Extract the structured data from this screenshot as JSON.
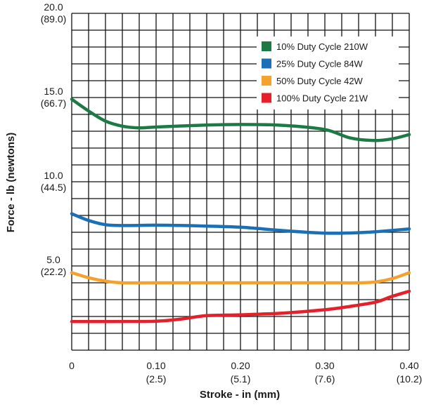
{
  "chart_data": {
    "type": "line",
    "xlabel": "Stroke - in (mm)",
    "ylabel": "Force - lb (newtons)",
    "xlim": [
      0,
      0.4
    ],
    "ylim": [
      0,
      20.0
    ],
    "x_ticks": [
      {
        "value": 0,
        "label": "0",
        "sublabel": ""
      },
      {
        "value": 0.1,
        "label": "0.10",
        "sublabel": "(2.5)"
      },
      {
        "value": 0.2,
        "label": "0.20",
        "sublabel": "(5.1)"
      },
      {
        "value": 0.3,
        "label": "0.30",
        "sublabel": "(7.6)"
      },
      {
        "value": 0.4,
        "label": "0.40",
        "sublabel": "(10.2)"
      }
    ],
    "y_ticks": [
      {
        "value": 20.0,
        "label": "20.0",
        "sublabel": "(89.0)"
      },
      {
        "value": 15.0,
        "label": "15.0",
        "sublabel": "(66.7)"
      },
      {
        "value": 10.0,
        "label": "10.0",
        "sublabel": "(44.5)"
      },
      {
        "value": 5.0,
        "label": "5.0",
        "sublabel": "(22.2)"
      }
    ],
    "grid": true,
    "grid_x_divisions": 20,
    "grid_y_divisions": 20,
    "legend_position": "top-right",
    "series": [
      {
        "name": "10% Duty Cycle 210W",
        "color": "#1e7a45",
        "x": [
          0,
          0.02,
          0.04,
          0.06,
          0.08,
          0.1,
          0.15,
          0.2,
          0.25,
          0.3,
          0.33,
          0.36,
          0.38,
          0.4
        ],
        "y": [
          14.9,
          14.2,
          13.6,
          13.3,
          13.2,
          13.25,
          13.35,
          13.4,
          13.35,
          13.1,
          12.6,
          12.45,
          12.55,
          12.8
        ]
      },
      {
        "name": "25% Duty Cycle 84W",
        "color": "#1a6fb7",
        "x": [
          0,
          0.02,
          0.04,
          0.06,
          0.1,
          0.15,
          0.2,
          0.25,
          0.3,
          0.35,
          0.4
        ],
        "y": [
          8.1,
          7.7,
          7.45,
          7.4,
          7.42,
          7.38,
          7.3,
          7.1,
          6.95,
          7.0,
          7.2
        ]
      },
      {
        "name": "50% Duty Cycle 42W",
        "color": "#f4a22d",
        "x": [
          0,
          0.02,
          0.04,
          0.06,
          0.1,
          0.2,
          0.3,
          0.34,
          0.36,
          0.38,
          0.4
        ],
        "y": [
          4.6,
          4.3,
          4.1,
          4.0,
          4.0,
          4.0,
          4.0,
          4.0,
          4.05,
          4.25,
          4.6
        ]
      },
      {
        "name": "100% Duty Cycle 21W",
        "color": "#e5202a",
        "x": [
          0,
          0.05,
          0.1,
          0.13,
          0.16,
          0.2,
          0.25,
          0.3,
          0.33,
          0.36,
          0.38,
          0.4
        ],
        "y": [
          1.7,
          1.7,
          1.72,
          1.85,
          2.05,
          2.1,
          2.2,
          2.4,
          2.6,
          2.85,
          3.2,
          3.5
        ]
      }
    ]
  }
}
